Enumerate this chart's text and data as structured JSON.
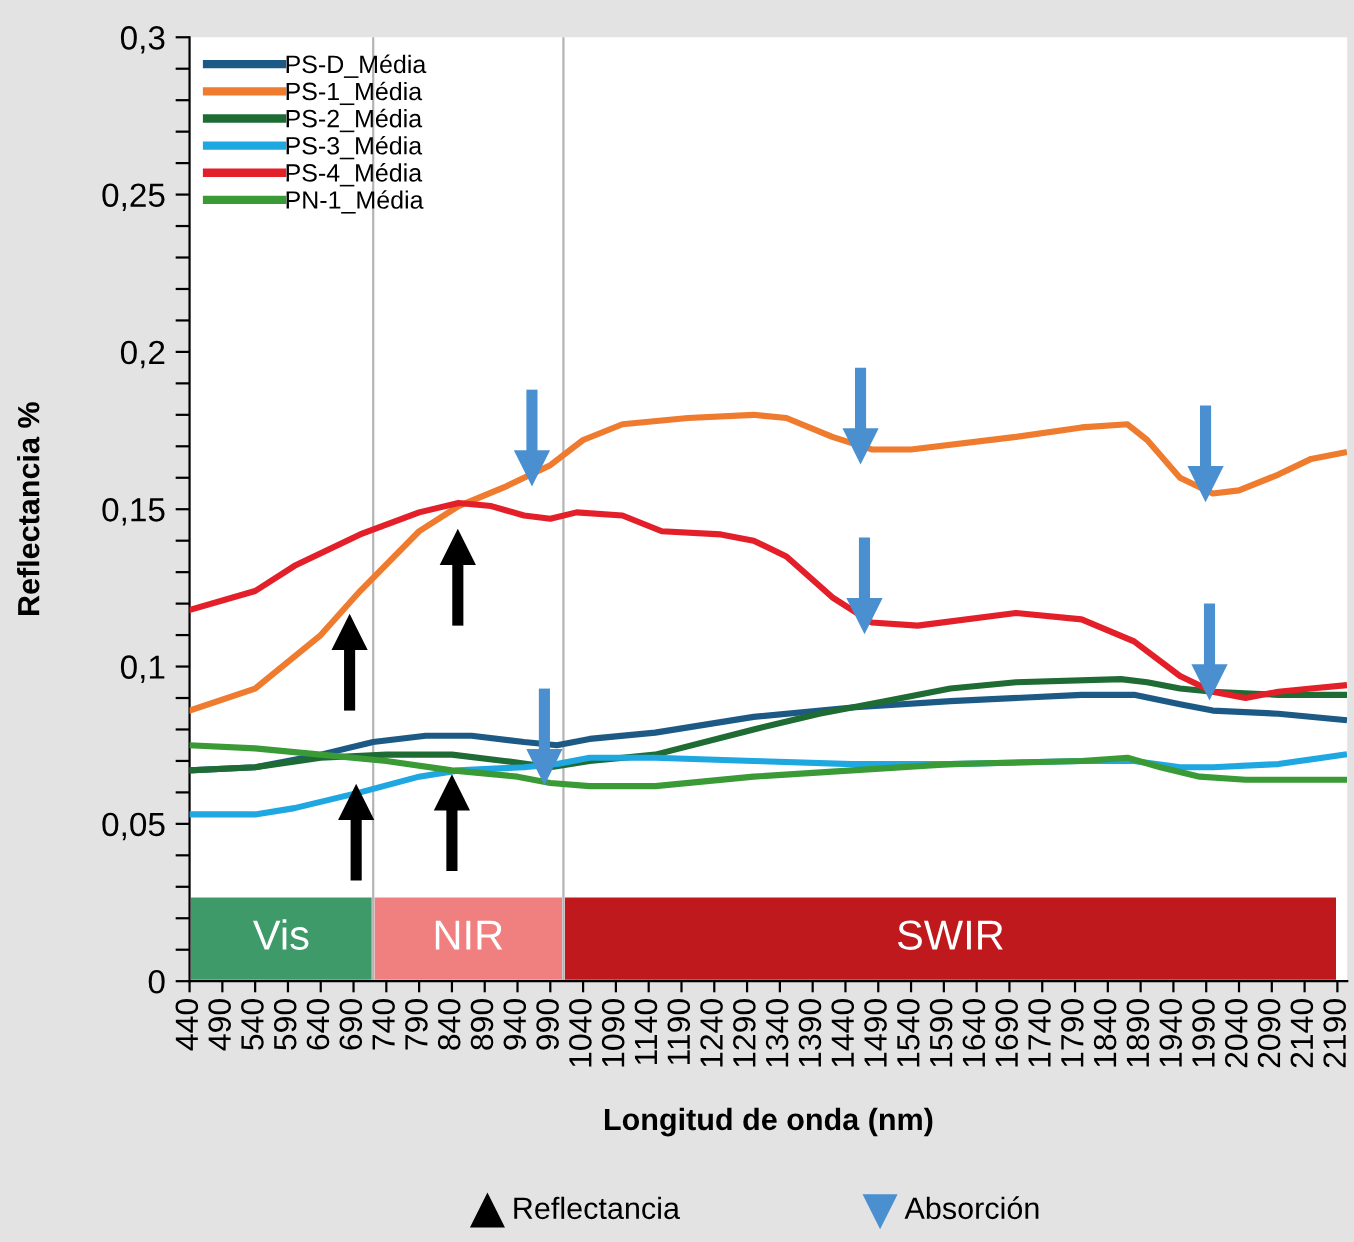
{
  "chart_data": {
    "type": "line",
    "xlabel": "Longitud de onda (nm)",
    "ylabel": "Reflectancia %",
    "xlim": [
      440,
      2205
    ],
    "xticks": [
      440,
      490,
      540,
      590,
      640,
      690,
      740,
      790,
      840,
      890,
      940,
      990,
      1040,
      1090,
      1140,
      1190,
      1240,
      1290,
      1340,
      1390,
      1440,
      1490,
      1540,
      1590,
      1640,
      1690,
      1740,
      1790,
      1840,
      1890,
      1940,
      1990,
      2040,
      2090,
      2140,
      2190
    ],
    "ylim": [
      0,
      0.3
    ],
    "yticks": [
      {
        "value": 0,
        "label": "0"
      },
      {
        "value": 0.01,
        "label": null
      },
      {
        "value": 0.02,
        "label": null
      },
      {
        "value": 0.03,
        "label": null
      },
      {
        "value": 0.04,
        "label": null
      },
      {
        "value": 0.05,
        "label": "0,05"
      },
      {
        "value": 0.06,
        "label": null
      },
      {
        "value": 0.07,
        "label": null
      },
      {
        "value": 0.08,
        "label": null
      },
      {
        "value": 0.09,
        "label": null
      },
      {
        "value": 0.1,
        "label": "0,1"
      },
      {
        "value": 0.11,
        "label": null
      },
      {
        "value": 0.12,
        "label": null
      },
      {
        "value": 0.13,
        "label": null
      },
      {
        "value": 0.14,
        "label": null
      },
      {
        "value": 0.15,
        "label": "0,15"
      },
      {
        "value": 0.16,
        "label": null
      },
      {
        "value": 0.17,
        "label": null
      },
      {
        "value": 0.18,
        "label": null
      },
      {
        "value": 0.19,
        "label": null
      },
      {
        "value": 0.2,
        "label": "0,2"
      },
      {
        "value": 0.21,
        "label": null
      },
      {
        "value": 0.22,
        "label": null
      },
      {
        "value": 0.23,
        "label": null
      },
      {
        "value": 0.24,
        "label": null
      },
      {
        "value": 0.25,
        "label": "0,25"
      },
      {
        "value": 0.26,
        "label": null
      },
      {
        "value": 0.27,
        "label": null
      },
      {
        "value": 0.28,
        "label": null
      },
      {
        "value": 0.29,
        "label": null
      },
      {
        "value": 0.3,
        "label": "0,3"
      }
    ],
    "grid": false,
    "legend": "top left",
    "annotations": [
      "Reflectancia",
      "Absorción"
    ],
    "series": [
      {
        "name": "PS-D_Média",
        "color": "#1c5a85",
        "x": [
          440,
          540,
          640,
          720,
          800,
          870,
          950,
          1000,
          1050,
          1150,
          1300,
          1450,
          1600,
          1800,
          1880,
          1950,
          2000,
          2100,
          2200
        ],
        "values": [
          0.067,
          0.068,
          0.072,
          0.076,
          0.078,
          0.078,
          0.076,
          0.075,
          0.077,
          0.079,
          0.084,
          0.087,
          0.089,
          0.091,
          0.091,
          0.088,
          0.086,
          0.085,
          0.083
        ]
      },
      {
        "name": "PS-1_Média",
        "color": "#ef7b2e",
        "x": [
          440,
          540,
          640,
          700,
          790,
          850,
          920,
          990,
          1040,
          1100,
          1200,
          1300,
          1350,
          1420,
          1480,
          1540,
          1700,
          1800,
          1870,
          1900,
          1950,
          2000,
          2040,
          2100,
          2150,
          2200
        ],
        "values": [
          0.086,
          0.093,
          0.11,
          0.124,
          0.143,
          0.151,
          0.157,
          0.164,
          0.172,
          0.177,
          0.179,
          0.18,
          0.179,
          0.173,
          0.169,
          0.169,
          0.173,
          0.176,
          0.177,
          0.172,
          0.16,
          0.155,
          0.156,
          0.161,
          0.166,
          0.168
        ]
      },
      {
        "name": "PS-2_Média",
        "color": "#1e6b34",
        "x": [
          440,
          540,
          640,
          740,
          840,
          920,
          990,
          1050,
          1150,
          1300,
          1400,
          1500,
          1600,
          1700,
          1860,
          1900,
          1950,
          2000,
          2100,
          2200
        ],
        "values": [
          0.067,
          0.068,
          0.071,
          0.072,
          0.072,
          0.07,
          0.068,
          0.07,
          0.072,
          0.08,
          0.085,
          0.089,
          0.093,
          0.095,
          0.096,
          0.095,
          0.093,
          0.092,
          0.091,
          0.091
        ]
      },
      {
        "name": "PS-3_Média",
        "color": "#1ea7e1",
        "x": [
          440,
          540,
          600,
          700,
          790,
          850,
          950,
          1000,
          1050,
          1150,
          1300,
          1450,
          1600,
          1800,
          1880,
          1950,
          2000,
          2100,
          2200
        ],
        "values": [
          0.053,
          0.053,
          0.055,
          0.06,
          0.065,
          0.067,
          0.068,
          0.069,
          0.071,
          0.071,
          0.07,
          0.069,
          0.069,
          0.07,
          0.07,
          0.068,
          0.068,
          0.069,
          0.072
        ]
      },
      {
        "name": "PS-4_Média",
        "color": "#e3202a",
        "x": [
          440,
          540,
          600,
          700,
          790,
          850,
          900,
          950,
          990,
          1030,
          1100,
          1160,
          1250,
          1300,
          1350,
          1420,
          1480,
          1550,
          1700,
          1800,
          1880,
          1950,
          2000,
          2050,
          2100,
          2150,
          2200
        ],
        "values": [
          0.118,
          0.124,
          0.132,
          0.142,
          0.149,
          0.152,
          0.151,
          0.148,
          0.147,
          0.149,
          0.148,
          0.143,
          0.142,
          0.14,
          0.135,
          0.122,
          0.114,
          0.113,
          0.117,
          0.115,
          0.108,
          0.097,
          0.092,
          0.09,
          0.092,
          0.093,
          0.094
        ]
      },
      {
        "name": "PN-1_Média",
        "color": "#3a9a35",
        "x": [
          440,
          540,
          640,
          740,
          840,
          940,
          990,
          1050,
          1150,
          1300,
          1450,
          1600,
          1800,
          1870,
          1920,
          1980,
          2050,
          2200
        ],
        "values": [
          0.075,
          0.074,
          0.072,
          0.07,
          0.067,
          0.065,
          0.063,
          0.062,
          0.062,
          0.065,
          0.067,
          0.069,
          0.07,
          0.071,
          0.068,
          0.065,
          0.064,
          0.064
        ]
      },
      {
        "type": "scatter",
        "marker": "triangle",
        "color": "#000000",
        "x": [
          684,
          849,
          694,
          840
        ],
        "values": [
          0.111,
          0.138,
          0.057,
          0.06
        ],
        "errors": [
          [
            0.086,
            0.111
          ],
          [
            0.113,
            0.138
          ],
          [
            0.032,
            0.057
          ],
          [
            0.035,
            0.06
          ]
        ]
      },
      {
        "type": "scatter",
        "marker": "triangle",
        "color": "#4a90d0",
        "x": [
          962,
          981,
          1463,
          1469,
          1989,
          1995
        ],
        "values": [
          0.163,
          0.068,
          0.17,
          0.116,
          0.158,
          0.095
        ],
        "errors": [
          [
            0.163,
            0.188
          ],
          [
            0.068,
            0.093
          ],
          [
            0.17,
            0.195
          ],
          [
            0.116,
            0.141
          ],
          [
            0.158,
            0.183
          ],
          [
            0.095,
            0.12
          ]
        ]
      }
    ],
    "bands": [
      {
        "axis": "x",
        "from": 440,
        "to": 720,
        "label": "Vis",
        "color": "#3f9a6a"
      },
      {
        "axis": "x",
        "from": 720,
        "to": 1010,
        "label": "NIR",
        "color": "#f08080"
      },
      {
        "axis": "x",
        "from": 1010,
        "to": 2190,
        "label": "SWIR",
        "color": "#c0191d"
      }
    ],
    "ref_lines": [
      {
        "axis": "x",
        "value": 720,
        "color": "#b4b4b4"
      },
      {
        "axis": "x",
        "value": 1010,
        "color": "#b4b4b4"
      }
    ]
  }
}
